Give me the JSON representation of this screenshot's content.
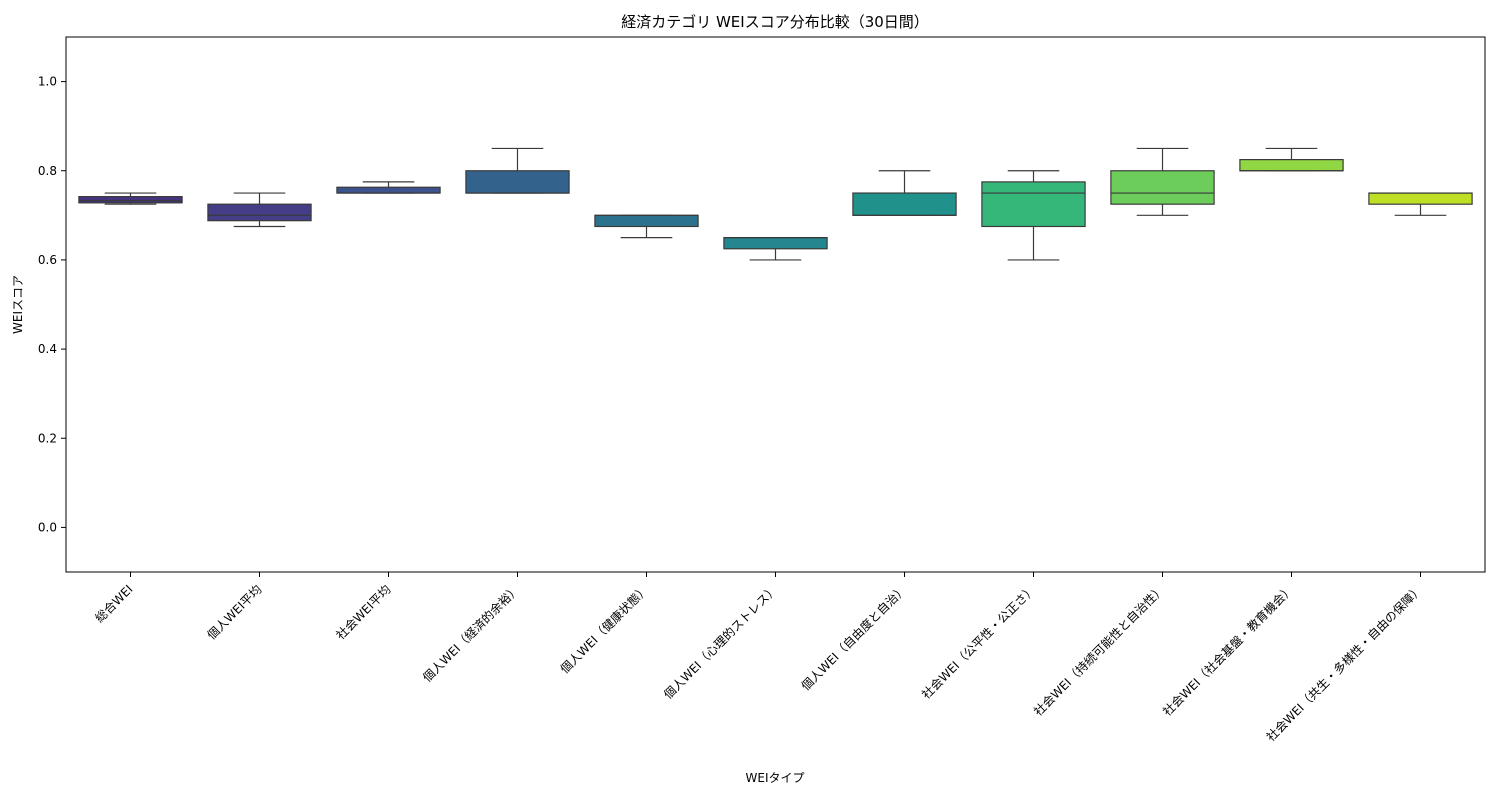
{
  "chart_data": {
    "type": "box",
    "title": "経済カテゴリ WEIスコア分布比較（30日間）",
    "xlabel": "WEIタイプ",
    "ylabel": "WEIスコア",
    "ylim": [
      -0.1,
      1.1
    ],
    "yticks": [
      0.0,
      0.2,
      0.4,
      0.6,
      0.8,
      1.0
    ],
    "ytick_labels": [
      "0.0",
      "0.2",
      "0.4",
      "0.6",
      "0.8",
      "1.0"
    ],
    "grid": false,
    "legend": "none",
    "categories": [
      "総合WEI",
      "個人WEI平均",
      "社会WEI平均",
      "個人WEI（経済的余裕）",
      "個人WEI（健康状態）",
      "個人WEI（心理的ストレス）",
      "個人WEI（自由度と自治）",
      "社会WEI（公平性・公正さ）",
      "社会WEI（持続可能性と自治性）",
      "社会WEI（社会基盤・教育機会）",
      "社会WEI（共生・多様性・自由の保障）"
    ],
    "boxes": [
      {
        "whisker_low": 0.725,
        "q1": 0.728,
        "median": 0.733,
        "q3": 0.742,
        "whisker_high": 0.75,
        "color": "#46327e"
      },
      {
        "whisker_low": 0.675,
        "q1": 0.688,
        "median": 0.7,
        "q3": 0.725,
        "whisker_high": 0.75,
        "color": "#433e85"
      },
      {
        "whisker_low": 0.75,
        "q1": 0.75,
        "median": 0.75,
        "q3": 0.763,
        "whisker_high": 0.775,
        "color": "#3b528b"
      },
      {
        "whisker_low": 0.75,
        "q1": 0.75,
        "median": 0.75,
        "q3": 0.8,
        "whisker_high": 0.85,
        "color": "#33638d"
      },
      {
        "whisker_low": 0.65,
        "q1": 0.675,
        "median": 0.7,
        "q3": 0.7,
        "whisker_high": 0.7,
        "color": "#2c728e"
      },
      {
        "whisker_low": 0.6,
        "q1": 0.625,
        "median": 0.65,
        "q3": 0.65,
        "whisker_high": 0.65,
        "color": "#24868e"
      },
      {
        "whisker_low": 0.7,
        "q1": 0.7,
        "median": 0.7,
        "q3": 0.75,
        "whisker_high": 0.8,
        "color": "#21918c"
      },
      {
        "whisker_low": 0.6,
        "q1": 0.675,
        "median": 0.75,
        "q3": 0.775,
        "whisker_high": 0.8,
        "color": "#35b779"
      },
      {
        "whisker_low": 0.7,
        "q1": 0.725,
        "median": 0.75,
        "q3": 0.8,
        "whisker_high": 0.85,
        "color": "#6ccd5a"
      },
      {
        "whisker_low": 0.8,
        "q1": 0.8,
        "median": 0.8,
        "q3": 0.825,
        "whisker_high": 0.85,
        "color": "#90d743"
      },
      {
        "whisker_low": 0.7,
        "q1": 0.725,
        "median": 0.75,
        "q3": 0.75,
        "whisker_high": 0.75,
        "color": "#bddf26"
      }
    ]
  }
}
